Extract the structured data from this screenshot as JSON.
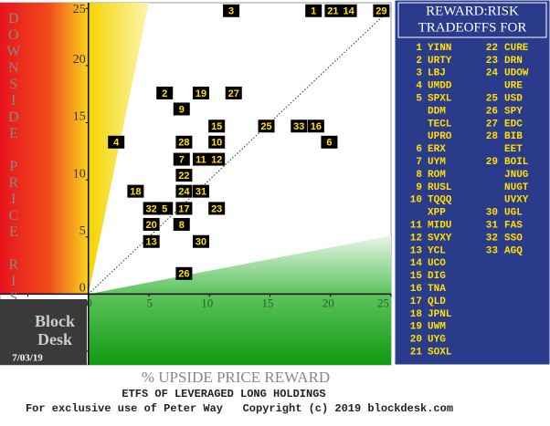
{
  "chart_data": {
    "type": "scatter",
    "y_label": "% DOWNSIDE PRICE RISK",
    "x_label": "% UPSIDE PRICE REWARD",
    "subtitle": "ETFS OF LEVERAGED LONG HOLDINGS",
    "footer": "For exclusive use of Peter Way   Copyright (c) 2019 blockdesk.com",
    "brand": [
      "Block",
      "Desk"
    ],
    "date": "7/03/19",
    "xlim": [
      -7.3,
      25
    ],
    "ylim": [
      -6.2,
      25.5
    ],
    "xticks": [
      -5,
      0,
      5,
      10,
      15,
      20,
      25
    ],
    "yticks": [
      -5,
      0,
      5,
      10,
      15,
      20,
      25
    ],
    "point_labels": [
      "3",
      "1",
      "21",
      "14",
      "29",
      "2",
      "19",
      "27",
      "9",
      "15",
      "25",
      "33",
      "16",
      "4",
      "28",
      "10",
      "6",
      "7",
      "11",
      "12",
      "22",
      "18",
      "24",
      "31",
      "32",
      "5",
      "17",
      "23",
      "20",
      "8",
      "13",
      "30",
      "26"
    ],
    "x": [
      11.8,
      18.6,
      20.2,
      21.5,
      24.2,
      6.3,
      9.3,
      12.0,
      7.7,
      10.6,
      14.7,
      17.4,
      18.8,
      2.3,
      7.9,
      10.6,
      19.9,
      7.7,
      9.3,
      10.6,
      7.9,
      3.9,
      7.9,
      9.3,
      5.2,
      6.3,
      7.9,
      10.6,
      5.2,
      7.7,
      5.2,
      9.3,
      7.9
    ],
    "y": [
      24.8,
      24.8,
      24.8,
      24.8,
      24.8,
      17.6,
      17.6,
      17.6,
      16.2,
      14.7,
      14.7,
      14.7,
      14.7,
      13.3,
      13.3,
      13.3,
      13.3,
      11.8,
      11.8,
      11.8,
      10.4,
      9.0,
      9.0,
      9.0,
      7.5,
      7.5,
      7.5,
      7.5,
      6.1,
      6.1,
      4.6,
      4.6,
      1.8
    ]
  },
  "legend": {
    "title": [
      "REWARD:RISK",
      "TRADEOFFS FOR"
    ],
    "left": [
      [
        "1",
        "YINN"
      ],
      [
        "2",
        "URTY"
      ],
      [
        "3",
        "LBJ"
      ],
      [
        "4",
        "UMDD"
      ],
      [
        "5",
        "SPXL"
      ],
      [
        null,
        "DDM"
      ],
      [
        null,
        "TECL"
      ],
      [
        null,
        "UPRO"
      ],
      [
        "6",
        "ERX"
      ],
      [
        "7",
        "UYM"
      ],
      [
        "8",
        "ROM"
      ],
      [
        "9",
        "RUSL"
      ],
      [
        "10",
        "TQQQ"
      ],
      [
        null,
        "XPP"
      ],
      [
        "11",
        "MIDU"
      ],
      [
        "12",
        "SVXY"
      ],
      [
        "13",
        "YCL"
      ],
      [
        "14",
        "UCO"
      ],
      [
        "15",
        "DIG"
      ],
      [
        "16",
        "TNA"
      ],
      [
        "17",
        "QLD"
      ],
      [
        "18",
        "JPNL"
      ],
      [
        "19",
        "UWM"
      ],
      [
        "20",
        "UYG"
      ],
      [
        "21",
        "SOXL"
      ]
    ],
    "right": [
      [
        "22",
        "CURE"
      ],
      [
        "23",
        "DRN"
      ],
      [
        "24",
        "UDOW"
      ],
      [
        null,
        "URE"
      ],
      [
        "25",
        "USD"
      ],
      [
        "26",
        "SPY"
      ],
      [
        "27",
        "EDC"
      ],
      [
        "28",
        "BIB"
      ],
      [
        null,
        "EET"
      ],
      [
        "29",
        "BOIL"
      ],
      [
        null,
        "JNUG"
      ],
      [
        null,
        "NUGT"
      ],
      [
        null,
        "UVXY"
      ],
      [
        "30",
        "UGL"
      ],
      [
        "31",
        "FAS"
      ],
      [
        "32",
        "SSO"
      ],
      [
        "33",
        "AGQ"
      ]
    ]
  }
}
